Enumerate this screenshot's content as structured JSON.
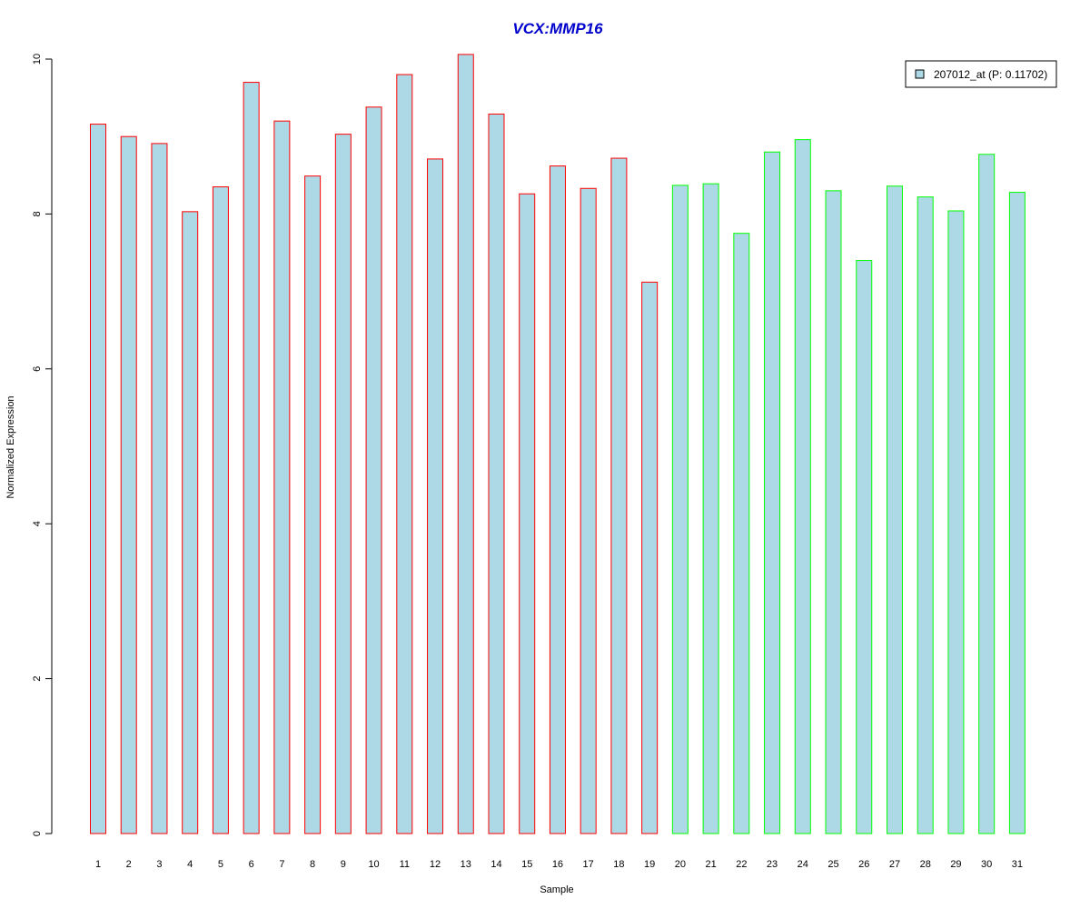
{
  "chart_data": {
    "type": "bar",
    "title": "VCX:MMP16",
    "xlabel": "Sample",
    "ylabel": "Normalized Expression",
    "ylim": [
      0,
      10
    ],
    "yticks": [
      0,
      2,
      4,
      6,
      8,
      10
    ],
    "grid": false,
    "legend_position": "top-right",
    "categories": [
      "1",
      "2",
      "3",
      "4",
      "5",
      "6",
      "7",
      "8",
      "9",
      "10",
      "11",
      "12",
      "13",
      "14",
      "15",
      "16",
      "17",
      "18",
      "19",
      "20",
      "21",
      "22",
      "23",
      "24",
      "25",
      "26",
      "27",
      "28",
      "29",
      "30",
      "31"
    ],
    "series": [
      {
        "name": "207012_at (P: 0.11702)",
        "values": [
          9.16,
          9.0,
          8.91,
          8.03,
          8.35,
          9.7,
          9.2,
          8.49,
          9.03,
          9.38,
          9.8,
          8.71,
          10.06,
          9.29,
          8.26,
          8.62,
          8.33,
          8.72,
          7.12,
          8.37,
          8.39,
          7.75,
          8.8,
          8.96,
          8.3,
          7.4,
          8.36,
          8.22,
          8.04,
          8.77,
          8.28
        ]
      }
    ],
    "groups": [
      {
        "from": 1,
        "to": 19,
        "border_color": "#ff0000"
      },
      {
        "from": 20,
        "to": 31,
        "border_color": "#00ff00"
      }
    ],
    "colors": {
      "bar_fill": "#add8e6",
      "title": "#0000cd",
      "axis": "#000000"
    }
  }
}
